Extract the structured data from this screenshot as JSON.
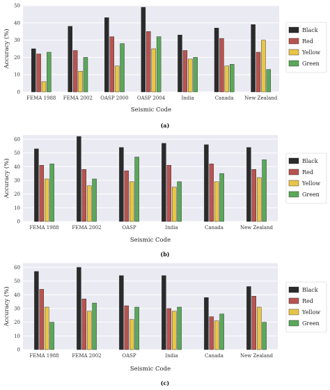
{
  "figure": {
    "panels": [
      {
        "caption": "(a)"
      },
      {
        "caption": "(b)"
      },
      {
        "caption": "(c)"
      }
    ]
  },
  "chart_data": [
    {
      "type": "bar",
      "xlabel": "Seismic Code",
      "ylabel": "Accuracy (%)",
      "ylim": [
        0,
        50
      ],
      "yticks": [
        0,
        10,
        20,
        30,
        40,
        50
      ],
      "grid": true,
      "legend": "right",
      "categories": [
        "FEMA 1988",
        "FEMA 2002",
        "OASP 2000",
        "OASP 2004",
        "India",
        "Canada",
        "New Zealand"
      ],
      "series": [
        {
          "name": "Black",
          "color": "#2b2b2b",
          "values": [
            25,
            38,
            43,
            49,
            33,
            37,
            39
          ]
        },
        {
          "name": "Red",
          "color": "#b85450",
          "values": [
            22,
            24,
            32,
            35,
            24,
            31,
            23
          ]
        },
        {
          "name": "Yellow",
          "color": "#e8c547",
          "values": [
            6,
            12,
            15,
            25,
            19,
            15,
            30
          ]
        },
        {
          "name": "Green",
          "color": "#5aa85a",
          "values": [
            23,
            20,
            28,
            32,
            20,
            16,
            13
          ]
        }
      ]
    },
    {
      "type": "bar",
      "xlabel": "Seismic Code",
      "ylabel": "Accuracy (%)",
      "ylim": [
        0,
        63
      ],
      "yticks": [
        0,
        10,
        20,
        30,
        40,
        50,
        60
      ],
      "grid": true,
      "legend": "right",
      "categories": [
        "FEMA 1988",
        "FEMA 2002",
        "OASP",
        "India",
        "Canada",
        "New Zealand"
      ],
      "series": [
        {
          "name": "Black",
          "color": "#2b2b2b",
          "values": [
            53,
            62,
            54,
            57,
            56,
            54
          ]
        },
        {
          "name": "Red",
          "color": "#b85450",
          "values": [
            41,
            38,
            37,
            41,
            42,
            38
          ]
        },
        {
          "name": "Yellow",
          "color": "#e8c547",
          "values": [
            31,
            26,
            29,
            25,
            29,
            32
          ]
        },
        {
          "name": "Green",
          "color": "#5aa85a",
          "values": [
            42,
            31,
            47,
            29,
            35,
            45
          ]
        }
      ]
    },
    {
      "type": "bar",
      "xlabel": "Seismic Code",
      "ylabel": "Accuracy (%)",
      "ylim": [
        0,
        63
      ],
      "yticks": [
        0,
        10,
        20,
        30,
        40,
        50,
        60
      ],
      "grid": true,
      "legend": "right",
      "categories": [
        "FEMA 1988",
        "FEMA 2002",
        "OASP",
        "India",
        "Canada",
        "New Zealand"
      ],
      "series": [
        {
          "name": "Black",
          "color": "#2b2b2b",
          "values": [
            57,
            60,
            54,
            54,
            38,
            46
          ]
        },
        {
          "name": "Red",
          "color": "#b85450",
          "values": [
            44,
            37,
            32,
            30,
            24,
            39
          ]
        },
        {
          "name": "Yellow",
          "color": "#e8c547",
          "values": [
            31,
            28,
            22,
            28,
            21,
            31
          ]
        },
        {
          "name": "Green",
          "color": "#5aa85a",
          "values": [
            20,
            34,
            31,
            31,
            26,
            20
          ]
        }
      ]
    }
  ]
}
